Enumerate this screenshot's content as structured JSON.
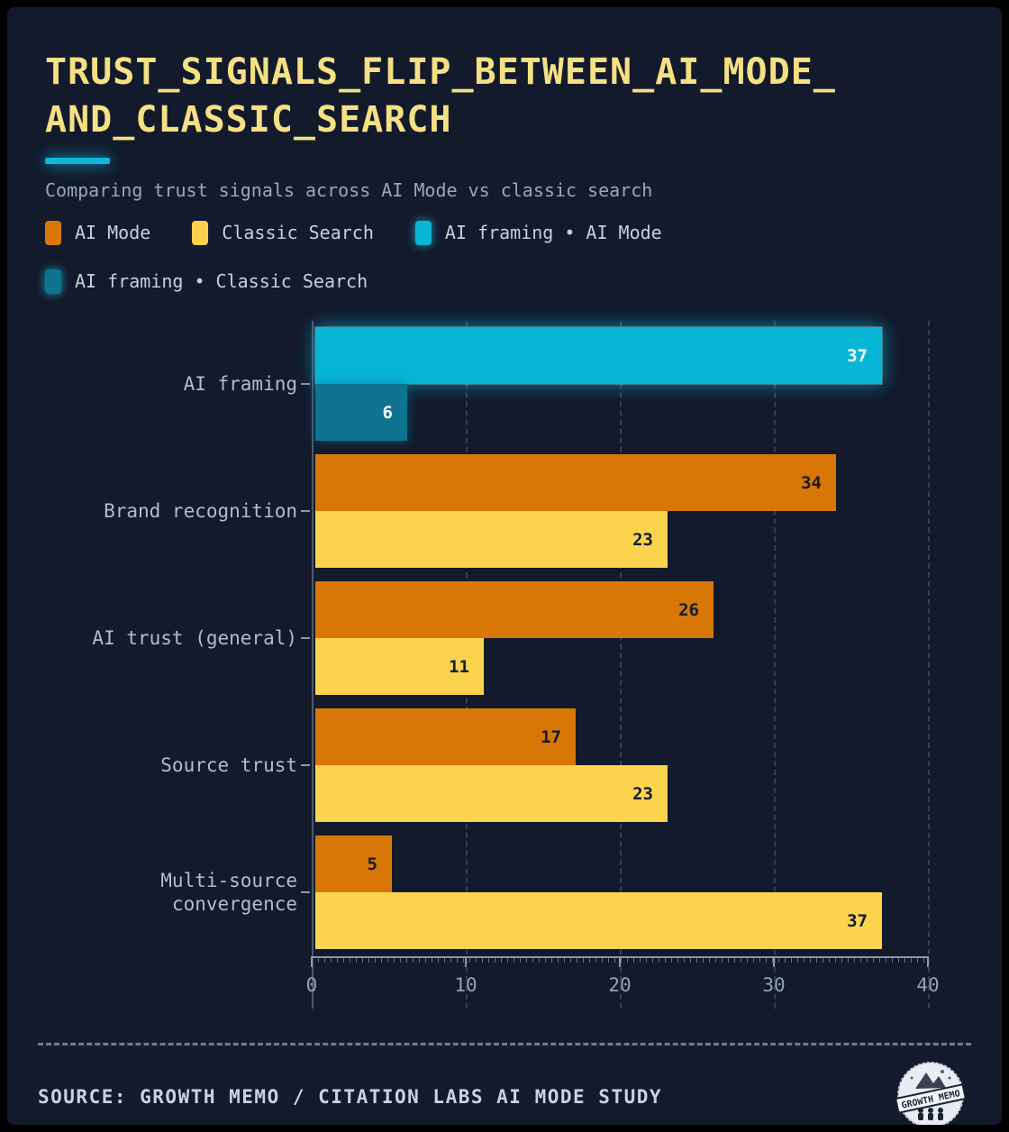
{
  "title": {
    "line1": "TRUST_SIGNALS_FLIP_BETWEEN_AI_MODE_",
    "line2": "AND_CLASSIC_SEARCH"
  },
  "subtitle": "Comparing trust signals across AI Mode vs classic search",
  "legend": [
    {
      "label": "AI Mode",
      "color": "#d97706",
      "glow": false
    },
    {
      "label": "Classic Search",
      "color": "#fcd34d",
      "glow": false
    },
    {
      "label": "AI framing • AI Mode",
      "color": "#06b6d4",
      "glow": true
    },
    {
      "label": "AI framing • Classic Search",
      "color": "#0e7490",
      "glow": true
    }
  ],
  "chart_data": {
    "type": "bar",
    "orientation": "horizontal",
    "title": "TRUST_SIGNALS_FLIP_BETWEEN_AI_MODE_AND_CLASSIC_SEARCH",
    "categories": [
      "AI framing",
      "Brand recognition",
      "AI trust (general)",
      "Source trust",
      "Multi-source convergence"
    ],
    "series": [
      {
        "name": "AI Mode",
        "values": [
          37,
          34,
          26,
          17,
          5
        ]
      },
      {
        "name": "Classic Search",
        "values": [
          6,
          23,
          11,
          23,
          37
        ]
      }
    ],
    "highlight_category": "AI framing",
    "xlim": [
      0,
      40
    ],
    "xticks": [
      0,
      10,
      20,
      30,
      40
    ],
    "grid": "dashed-vertical",
    "legend_position": "top",
    "value_labels": "inside-end"
  },
  "colors": {
    "background": "#131a2c",
    "frame": "#000000",
    "accent": "#0cb8dc",
    "ai_mode": "#d97706",
    "classic_search": "#fcd34d",
    "highlight_ai_mode": "#06b6d4",
    "highlight_classic_search": "#0e7490",
    "title_text": "#f5e083",
    "value_dark": "#131a2c",
    "value_light": "#ffffff"
  },
  "footer": {
    "source": "SOURCE: GROWTH MEMO / CITATION LABS AI MODE STUDY",
    "logo_text": "GROWTH MEMO"
  }
}
